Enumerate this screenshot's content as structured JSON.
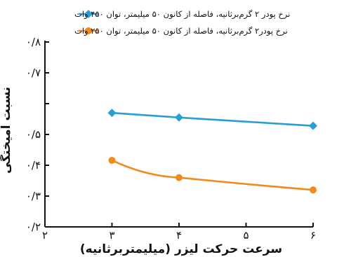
{
  "chart_data": {
    "type": "line",
    "title": "",
    "xlabel": "سرعت حرکت لیزر (میلیمتربرثانیه)",
    "ylabel": "نسبت آمیختگی",
    "xlim": [
      2,
      6
    ],
    "ylim": [
      0.2,
      0.8
    ],
    "x_ticks": [
      2,
      3,
      4,
      5,
      6
    ],
    "x_tick_labels": [
      "۲",
      "۳",
      "۴",
      "۵",
      "۶"
    ],
    "y_ticks": [
      0.2,
      0.3,
      0.4,
      0.5,
      0.6,
      0.7,
      0.8
    ],
    "y_tick_labels": [
      "۰/۲",
      "۰/۳",
      "۰/۴",
      "۰/۵",
      "",
      "۰/۷",
      "۰/۸"
    ],
    "grid": false,
    "legend_position": "top-right",
    "series": [
      {
        "name": "نرخ پودر ۲ گرم‌برثانیه، فاصله از کانون ۵۰ میلیمتر، توان ۴۵۰ وات",
        "color": "#2a9fd6",
        "marker": "diamond",
        "x": [
          3,
          4,
          6
        ],
        "y": [
          0.57,
          0.555,
          0.528
        ]
      },
      {
        "name": "نرخ پودر۲ گرم‌برثانیه، فاصله از کانون ۵۰ میلیمتر، توان ۲۵۰ وات",
        "color": "#f08a1c",
        "marker": "circle",
        "x": [
          3,
          4,
          6
        ],
        "y": [
          0.416,
          0.36,
          0.32
        ]
      }
    ]
  }
}
